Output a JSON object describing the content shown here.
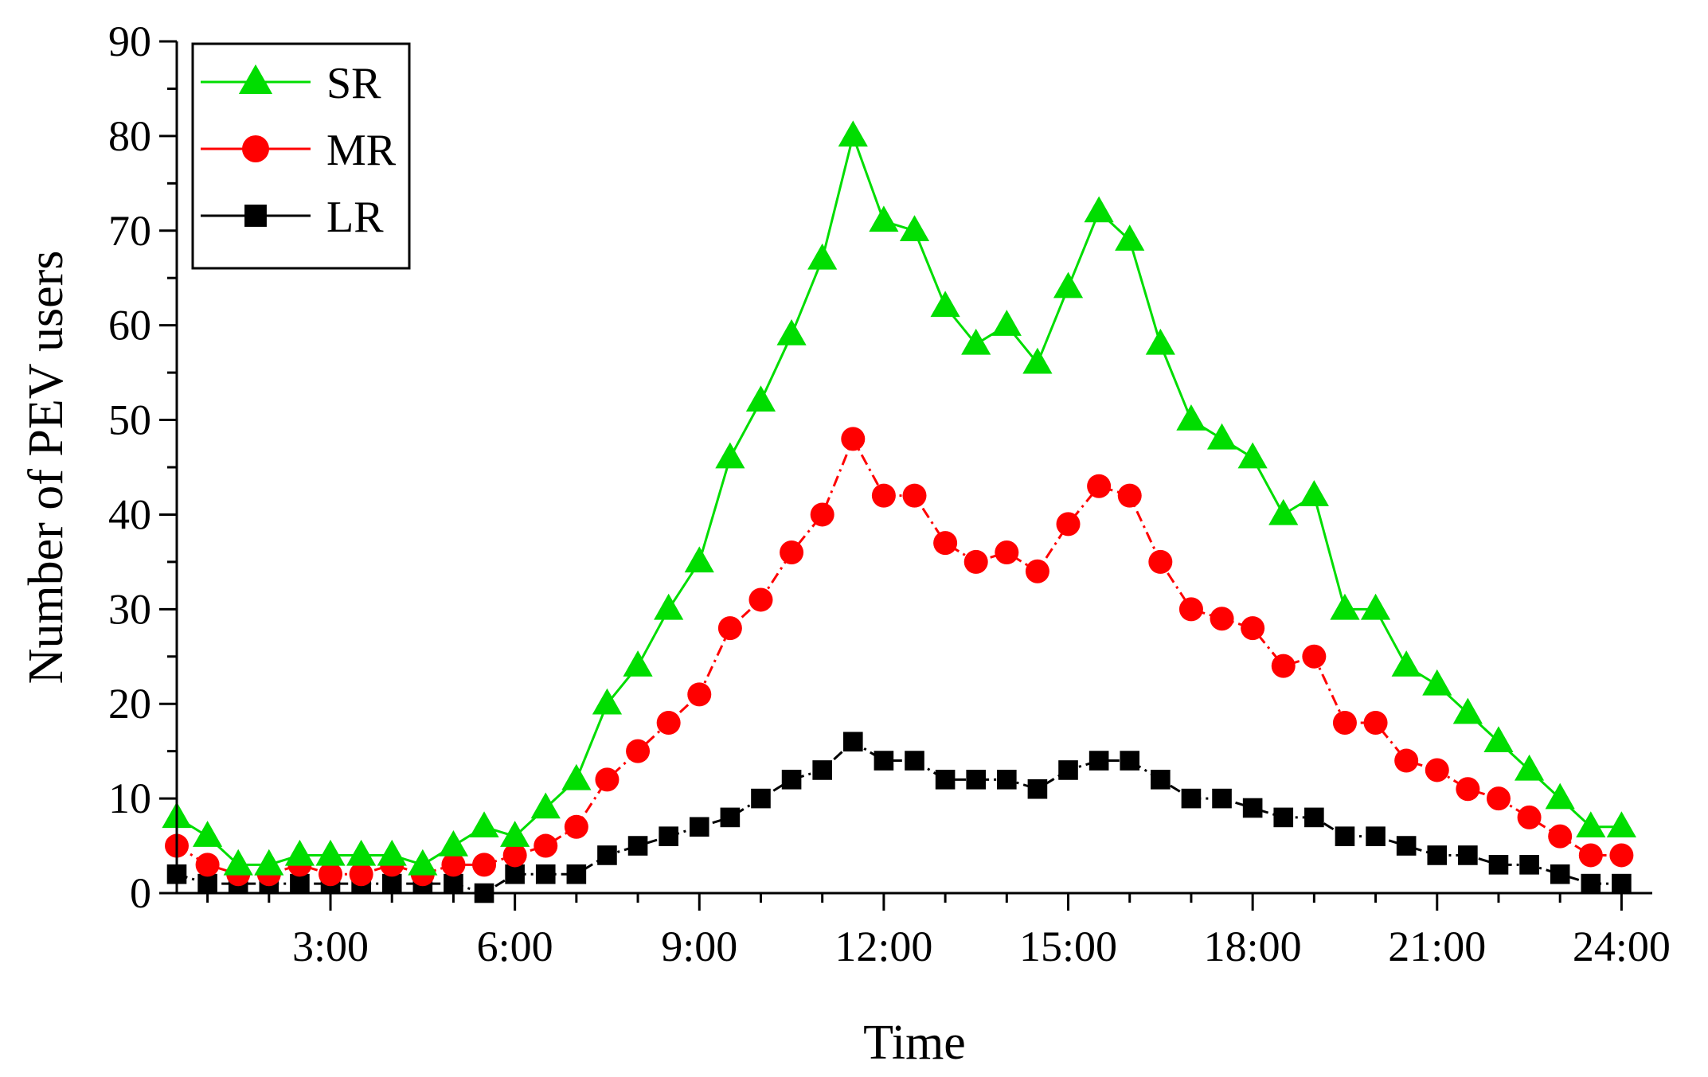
{
  "chart_data": {
    "type": "line",
    "title": "",
    "xlabel": "Time",
    "ylabel": "Number of PEV users",
    "xlim": [
      0.5,
      24.5
    ],
    "ylim": [
      0,
      90
    ],
    "x_ticks": [
      3,
      6,
      9,
      12,
      15,
      18,
      21,
      24
    ],
    "x_tick_labels": [
      "3:00",
      "6:00",
      "9:00",
      "12:00",
      "15:00",
      "18:00",
      "21:00",
      "24:00"
    ],
    "y_ticks": [
      0,
      10,
      20,
      30,
      40,
      50,
      60,
      70,
      80,
      90
    ],
    "y_tick_labels": [
      "0",
      "10",
      "20",
      "30",
      "40",
      "50",
      "60",
      "70",
      "80",
      "90"
    ],
    "legend_position": "top-left",
    "x": [
      0.5,
      1,
      1.5,
      2,
      2.5,
      3,
      3.5,
      4,
      4.5,
      5,
      5.5,
      6,
      6.5,
      7,
      7.5,
      8,
      8.5,
      9,
      9.5,
      10,
      10.5,
      11,
      11.5,
      12,
      12.5,
      13,
      13.5,
      14,
      14.5,
      15,
      15.5,
      16,
      16.5,
      17,
      17.5,
      18,
      18.5,
      19,
      19.5,
      20,
      20.5,
      21,
      21.5,
      22,
      22.5,
      23,
      23.5,
      24
    ],
    "series": [
      {
        "name": "SR",
        "color": "#00dd00",
        "marker": "triangle",
        "values": [
          8,
          6,
          3,
          3,
          4,
          4,
          4,
          4,
          3,
          5,
          7,
          6,
          9,
          12,
          20,
          24,
          30,
          35,
          46,
          52,
          59,
          67,
          80,
          71,
          70,
          62,
          58,
          60,
          56,
          64,
          72,
          69,
          58,
          50,
          48,
          46,
          40,
          42,
          30,
          30,
          24,
          22,
          19,
          16,
          13,
          10,
          7,
          7
        ]
      },
      {
        "name": "MR",
        "color": "#ff0000",
        "marker": "circle",
        "values": [
          5,
          3,
          2,
          2,
          3,
          2,
          2,
          3,
          2,
          3,
          3,
          4,
          5,
          7,
          12,
          15,
          18,
          21,
          28,
          31,
          36,
          40,
          48,
          42,
          42,
          37,
          35,
          36,
          34,
          39,
          43,
          42,
          35,
          30,
          29,
          28,
          24,
          25,
          18,
          18,
          14,
          13,
          11,
          10,
          8,
          6,
          4,
          4
        ]
      },
      {
        "name": "LR",
        "color": "#000000",
        "marker": "square",
        "values": [
          2,
          1,
          1,
          1,
          1,
          1,
          1,
          1,
          1,
          1,
          0,
          2,
          2,
          2,
          4,
          5,
          6,
          7,
          8,
          10,
          12,
          13,
          16,
          14,
          14,
          12,
          12,
          12,
          11,
          13,
          14,
          14,
          12,
          10,
          10,
          9,
          8,
          8,
          6,
          6,
          5,
          4,
          4,
          3,
          3,
          2,
          1,
          1
        ]
      }
    ]
  }
}
